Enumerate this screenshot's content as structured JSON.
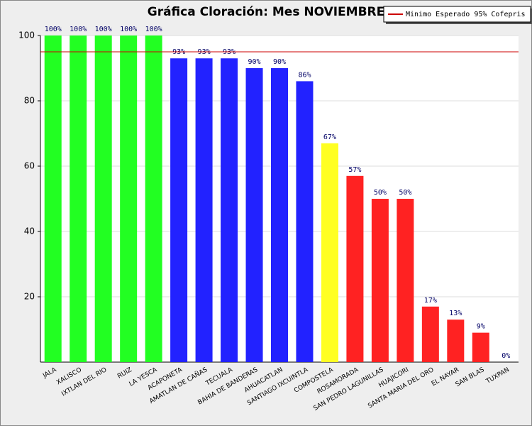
{
  "chart_data": {
    "type": "bar",
    "title": "Gráfica Cloración: Mes NOVIEMBRE",
    "categories": [
      "JALA",
      "XALISCO",
      "IXTLAN DEL RIO",
      "RUIZ",
      "LA YESCA",
      "ACAPONETA",
      "AMATLAN DE CAÑAS",
      "TECUALA",
      "BAHIA DE BANDERAS",
      "AHUACATLAN",
      "SANTIAGO IXCUINTLA",
      "COMPOSTELA",
      "ROSAMORADA",
      "SAN PEDRO LAGUNILLAS",
      "HUAJICORI",
      "SANTA MARIA DEL ORO",
      "EL NAYAR",
      "SAN BLAS",
      "TUXPAN"
    ],
    "values": [
      100,
      100,
      100,
      100,
      100,
      93,
      93,
      93,
      90,
      90,
      86,
      67,
      57,
      50,
      50,
      17,
      13,
      9,
      0
    ],
    "value_labels": [
      "100%",
      "100%",
      "100%",
      "100%",
      "100%",
      "93%",
      "93%",
      "93%",
      "90%",
      "90%",
      "86%",
      "67%",
      "57%",
      "50%",
      "50%",
      "17%",
      "13%",
      "9%",
      "0%"
    ],
    "colors": [
      "#22ff22",
      "#22ff22",
      "#22ff22",
      "#22ff22",
      "#22ff22",
      "#2222ff",
      "#2222ff",
      "#2222ff",
      "#2222ff",
      "#2222ff",
      "#2222ff",
      "#ffff22",
      "#ff2222",
      "#ff2222",
      "#ff2222",
      "#ff2222",
      "#ff2222",
      "#ff2222",
      "#ff2222"
    ],
    "reference_line": {
      "value": 95,
      "label": "Minimo Esperado 95% Cofepris",
      "color": "#cc0000"
    },
    "ylim": [
      0,
      100
    ],
    "yticks": [
      20,
      40,
      60,
      80,
      100
    ],
    "grid": true,
    "legend": "top-right"
  }
}
